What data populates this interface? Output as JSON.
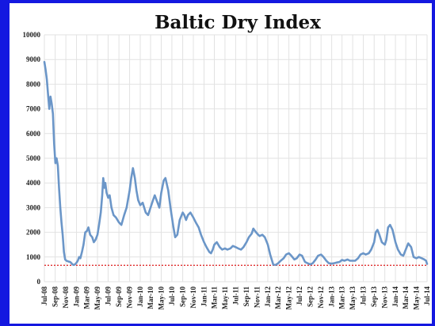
{
  "chart_data": {
    "type": "line",
    "title": "Baltic Dry Index",
    "xlabel": "",
    "ylabel": "",
    "ylim": [
      0,
      10000
    ],
    "yticks": [
      0,
      1000,
      2000,
      3000,
      4000,
      5000,
      6000,
      7000,
      8000,
      9000,
      10000
    ],
    "xlim": [
      "2008-07",
      "2014-07"
    ],
    "xticks": [
      "Jul-08",
      "Sep-08",
      "Nov-08",
      "Jan-09",
      "Mar-09",
      "May-09",
      "Jul-09",
      "Sep-09",
      "Nov-09",
      "Jan-10",
      "Mar-10",
      "May-10",
      "Jul-10",
      "Sep-10",
      "Nov-10",
      "Jan-11",
      "Mar-11",
      "May-11",
      "Jul-11",
      "Sep-11",
      "Nov-11",
      "Jan-12",
      "Mar-12",
      "May-12",
      "Jul-12",
      "Sep-12",
      "Nov-12",
      "Jan-13",
      "Mar-13",
      "May-13",
      "Jul-13",
      "Sep-13",
      "Nov-13",
      "Jan-14",
      "Mar-14",
      "May-14",
      "Jul-14"
    ],
    "grid": true,
    "reference_line": {
      "value": 663,
      "style": "dotted",
      "color": "#e03030"
    },
    "series": [
      {
        "line_color": "#6b96c8",
        "points": [
          [
            "2008-07-01",
            8900
          ],
          [
            "2008-07-08",
            8600
          ],
          [
            "2008-07-15",
            8200
          ],
          [
            "2008-07-22",
            7600
          ],
          [
            "2008-07-29",
            7000
          ],
          [
            "2008-08-05",
            7500
          ],
          [
            "2008-08-12",
            7200
          ],
          [
            "2008-08-19",
            6800
          ],
          [
            "2008-08-26",
            5600
          ],
          [
            "2008-09-02",
            4800
          ],
          [
            "2008-09-09",
            5000
          ],
          [
            "2008-09-16",
            4700
          ],
          [
            "2008-09-23",
            3800
          ],
          [
            "2008-09-30",
            3000
          ],
          [
            "2008-10-07",
            2400
          ],
          [
            "2008-10-14",
            1900
          ],
          [
            "2008-10-21",
            1200
          ],
          [
            "2008-10-28",
            900
          ],
          [
            "2008-11-04",
            850
          ],
          [
            "2008-11-11",
            830
          ],
          [
            "2008-11-18",
            810
          ],
          [
            "2008-11-25",
            800
          ],
          [
            "2008-12-02",
            760
          ],
          [
            "2008-12-09",
            700
          ],
          [
            "2008-12-16",
            680
          ],
          [
            "2008-12-23",
            700
          ],
          [
            "2009-01-02",
            780
          ],
          [
            "2009-01-09",
            860
          ],
          [
            "2009-01-16",
            1000
          ],
          [
            "2009-01-23",
            950
          ],
          [
            "2009-02-01",
            1200
          ],
          [
            "2009-02-10",
            1500
          ],
          [
            "2009-02-20",
            2000
          ],
          [
            "2009-03-01",
            2050
          ],
          [
            "2009-03-10",
            2200
          ],
          [
            "2009-03-20",
            1900
          ],
          [
            "2009-04-01",
            1800
          ],
          [
            "2009-04-10",
            1600
          ],
          [
            "2009-04-20",
            1700
          ],
          [
            "2009-05-01",
            1900
          ],
          [
            "2009-05-10",
            2300
          ],
          [
            "2009-05-20",
            2800
          ],
          [
            "2009-05-28",
            3500
          ],
          [
            "2009-06-03",
            4200
          ],
          [
            "2009-06-10",
            3800
          ],
          [
            "2009-06-15",
            4000
          ],
          [
            "2009-06-22",
            3600
          ],
          [
            "2009-07-01",
            3400
          ],
          [
            "2009-07-10",
            3500
          ],
          [
            "2009-07-20",
            3000
          ],
          [
            "2009-08-01",
            2700
          ],
          [
            "2009-08-15",
            2600
          ],
          [
            "2009-09-01",
            2400
          ],
          [
            "2009-09-15",
            2300
          ],
          [
            "2009-10-01",
            2700
          ],
          [
            "2009-10-15",
            3000
          ],
          [
            "2009-11-01",
            3700
          ],
          [
            "2009-11-10",
            4200
          ],
          [
            "2009-11-20",
            4600
          ],
          [
            "2009-12-01",
            4200
          ],
          [
            "2009-12-10",
            3700
          ],
          [
            "2009-12-20",
            3300
          ],
          [
            "2010-01-01",
            3100
          ],
          [
            "2010-01-15",
            3200
          ],
          [
            "2010-02-01",
            2800
          ],
          [
            "2010-02-15",
            2700
          ],
          [
            "2010-03-01",
            3000
          ],
          [
            "2010-03-15",
            3300
          ],
          [
            "2010-03-25",
            3500
          ],
          [
            "2010-04-10",
            3200
          ],
          [
            "2010-04-20",
            3000
          ],
          [
            "2010-05-01",
            3600
          ],
          [
            "2010-05-15",
            4100
          ],
          [
            "2010-05-25",
            4200
          ],
          [
            "2010-06-10",
            3700
          ],
          [
            "2010-06-25",
            2900
          ],
          [
            "2010-07-10",
            2200
          ],
          [
            "2010-07-20",
            1800
          ],
          [
            "2010-08-01",
            1900
          ],
          [
            "2010-08-15",
            2500
          ],
          [
            "2010-09-01",
            2800
          ],
          [
            "2010-09-10",
            2700
          ],
          [
            "2010-09-20",
            2500
          ],
          [
            "2010-10-01",
            2700
          ],
          [
            "2010-10-15",
            2800
          ],
          [
            "2010-11-01",
            2600
          ],
          [
            "2010-11-15",
            2400
          ],
          [
            "2010-12-01",
            2200
          ],
          [
            "2010-12-15",
            1900
          ],
          [
            "2011-01-01",
            1600
          ],
          [
            "2011-01-15",
            1400
          ],
          [
            "2011-02-01",
            1200
          ],
          [
            "2011-02-10",
            1150
          ],
          [
            "2011-02-20",
            1300
          ],
          [
            "2011-03-01",
            1500
          ],
          [
            "2011-03-15",
            1600
          ],
          [
            "2011-04-01",
            1400
          ],
          [
            "2011-04-15",
            1300
          ],
          [
            "2011-05-01",
            1350
          ],
          [
            "2011-05-15",
            1300
          ],
          [
            "2011-06-01",
            1350
          ],
          [
            "2011-06-15",
            1450
          ],
          [
            "2011-07-01",
            1400
          ],
          [
            "2011-07-15",
            1350
          ],
          [
            "2011-08-01",
            1300
          ],
          [
            "2011-08-15",
            1400
          ],
          [
            "2011-09-01",
            1600
          ],
          [
            "2011-09-15",
            1800
          ],
          [
            "2011-10-01",
            1950
          ],
          [
            "2011-10-10",
            2150
          ],
          [
            "2011-10-20",
            2050
          ],
          [
            "2011-11-01",
            1950
          ],
          [
            "2011-11-15",
            1850
          ],
          [
            "2011-12-01",
            1900
          ],
          [
            "2011-12-15",
            1800
          ],
          [
            "2012-01-01",
            1500
          ],
          [
            "2012-01-15",
            1100
          ],
          [
            "2012-02-01",
            700
          ],
          [
            "2012-02-15",
            680
          ],
          [
            "2012-03-01",
            750
          ],
          [
            "2012-03-15",
            850
          ],
          [
            "2012-04-01",
            950
          ],
          [
            "2012-04-15",
            1100
          ],
          [
            "2012-05-01",
            1150
          ],
          [
            "2012-05-15",
            1050
          ],
          [
            "2012-06-01",
            900
          ],
          [
            "2012-06-15",
            950
          ],
          [
            "2012-07-01",
            1100
          ],
          [
            "2012-07-15",
            1050
          ],
          [
            "2012-08-01",
            800
          ],
          [
            "2012-08-15",
            750
          ],
          [
            "2012-09-01",
            700
          ],
          [
            "2012-09-15",
            750
          ],
          [
            "2012-10-01",
            900
          ],
          [
            "2012-10-15",
            1050
          ],
          [
            "2012-11-01",
            1100
          ],
          [
            "2012-11-15",
            1000
          ],
          [
            "2012-12-01",
            850
          ],
          [
            "2012-12-15",
            750
          ],
          [
            "2013-01-01",
            730
          ],
          [
            "2013-01-15",
            750
          ],
          [
            "2013-02-01",
            780
          ],
          [
            "2013-02-15",
            800
          ],
          [
            "2013-03-01",
            880
          ],
          [
            "2013-03-15",
            850
          ],
          [
            "2013-04-01",
            900
          ],
          [
            "2013-04-15",
            850
          ],
          [
            "2013-05-01",
            850
          ],
          [
            "2013-05-15",
            850
          ],
          [
            "2013-06-01",
            950
          ],
          [
            "2013-06-15",
            1100
          ],
          [
            "2013-07-01",
            1150
          ],
          [
            "2013-07-15",
            1100
          ],
          [
            "2013-08-01",
            1150
          ],
          [
            "2013-08-15",
            1300
          ],
          [
            "2013-09-01",
            1600
          ],
          [
            "2013-09-10",
            2000
          ],
          [
            "2013-09-20",
            2100
          ],
          [
            "2013-10-01",
            1900
          ],
          [
            "2013-10-15",
            1600
          ],
          [
            "2013-11-01",
            1500
          ],
          [
            "2013-11-10",
            1700
          ],
          [
            "2013-11-20",
            2200
          ],
          [
            "2013-12-01",
            2300
          ],
          [
            "2013-12-15",
            2100
          ],
          [
            "2014-01-01",
            1600
          ],
          [
            "2014-01-15",
            1300
          ],
          [
            "2014-02-01",
            1100
          ],
          [
            "2014-02-15",
            1050
          ],
          [
            "2014-03-01",
            1300
          ],
          [
            "2014-03-15",
            1550
          ],
          [
            "2014-04-01",
            1400
          ],
          [
            "2014-04-15",
            1000
          ],
          [
            "2014-05-01",
            950
          ],
          [
            "2014-05-15",
            1000
          ],
          [
            "2014-06-01",
            950
          ],
          [
            "2014-06-15",
            900
          ],
          [
            "2014-06-25",
            850
          ],
          [
            "2014-07-01",
            720
          ]
        ]
      }
    ]
  }
}
